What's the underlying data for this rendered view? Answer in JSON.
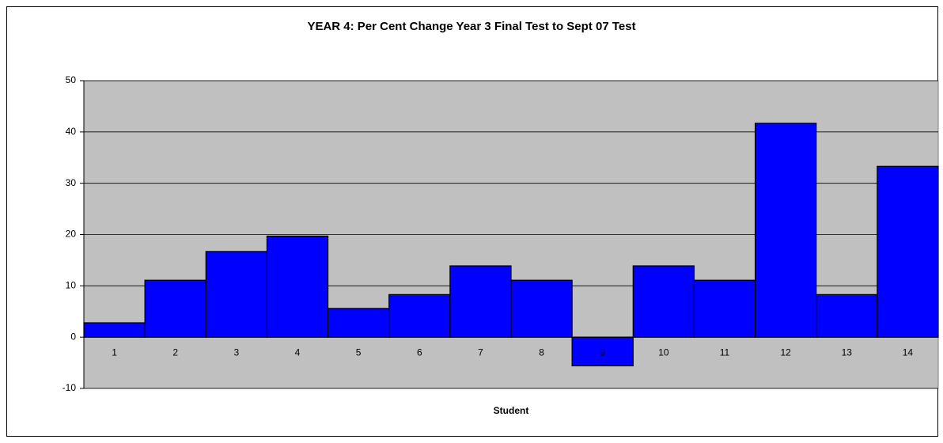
{
  "chart_data": {
    "type": "bar",
    "title": "YEAR 4:  Per Cent Change Year 3 Final Test to Sept 07 Test",
    "x_label": "Student",
    "categories": [
      "1",
      "2",
      "3",
      "4",
      "5",
      "6",
      "7",
      "8",
      "9",
      "10",
      "11",
      "12",
      "13",
      "14"
    ],
    "values": [
      2.8,
      11.1,
      16.7,
      19.7,
      5.6,
      8.3,
      13.9,
      11.1,
      -5.6,
      13.9,
      11.1,
      41.7,
      8.3,
      33.3
    ],
    "color": "#0000ff",
    "ylim": [
      -10,
      50
    ],
    "yticks": [
      -10,
      0,
      10,
      20,
      30,
      40,
      50
    ],
    "grid": true
  }
}
